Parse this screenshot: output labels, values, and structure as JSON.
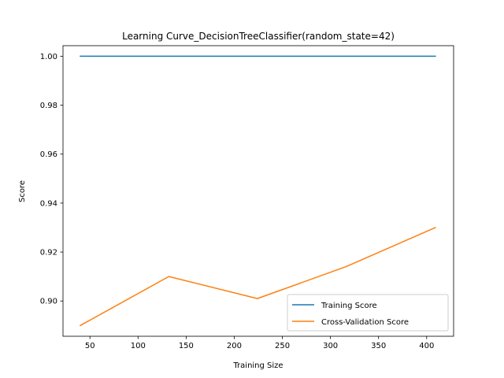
{
  "chart_data": {
    "type": "line",
    "title": "Learning Curve_DecisionTreeClassifier(random_state=42)",
    "xlabel": "Training Size",
    "ylabel": "Score",
    "xlim": [
      22,
      428
    ],
    "ylim": [
      0.8856,
      1.0043
    ],
    "xticks": [
      50,
      100,
      150,
      200,
      250,
      300,
      350,
      400
    ],
    "yticks": [
      0.9,
      0.92,
      0.94,
      0.96,
      0.98,
      1.0
    ],
    "ytick_labels": [
      "0.90",
      "0.92",
      "0.94",
      "0.96",
      "0.98",
      "1.00"
    ],
    "grid": false,
    "legend_position": "lower-right",
    "x": [
      40,
      132,
      224,
      316,
      409
    ],
    "series": [
      {
        "name": "Training Score",
        "color": "#1f77b4",
        "values": [
          1.0,
          1.0,
          1.0,
          1.0,
          1.0
        ]
      },
      {
        "name": "Cross-Validation Score",
        "color": "#ff7f0e",
        "values": [
          0.89,
          0.91,
          0.901,
          0.914,
          0.93
        ]
      }
    ]
  }
}
